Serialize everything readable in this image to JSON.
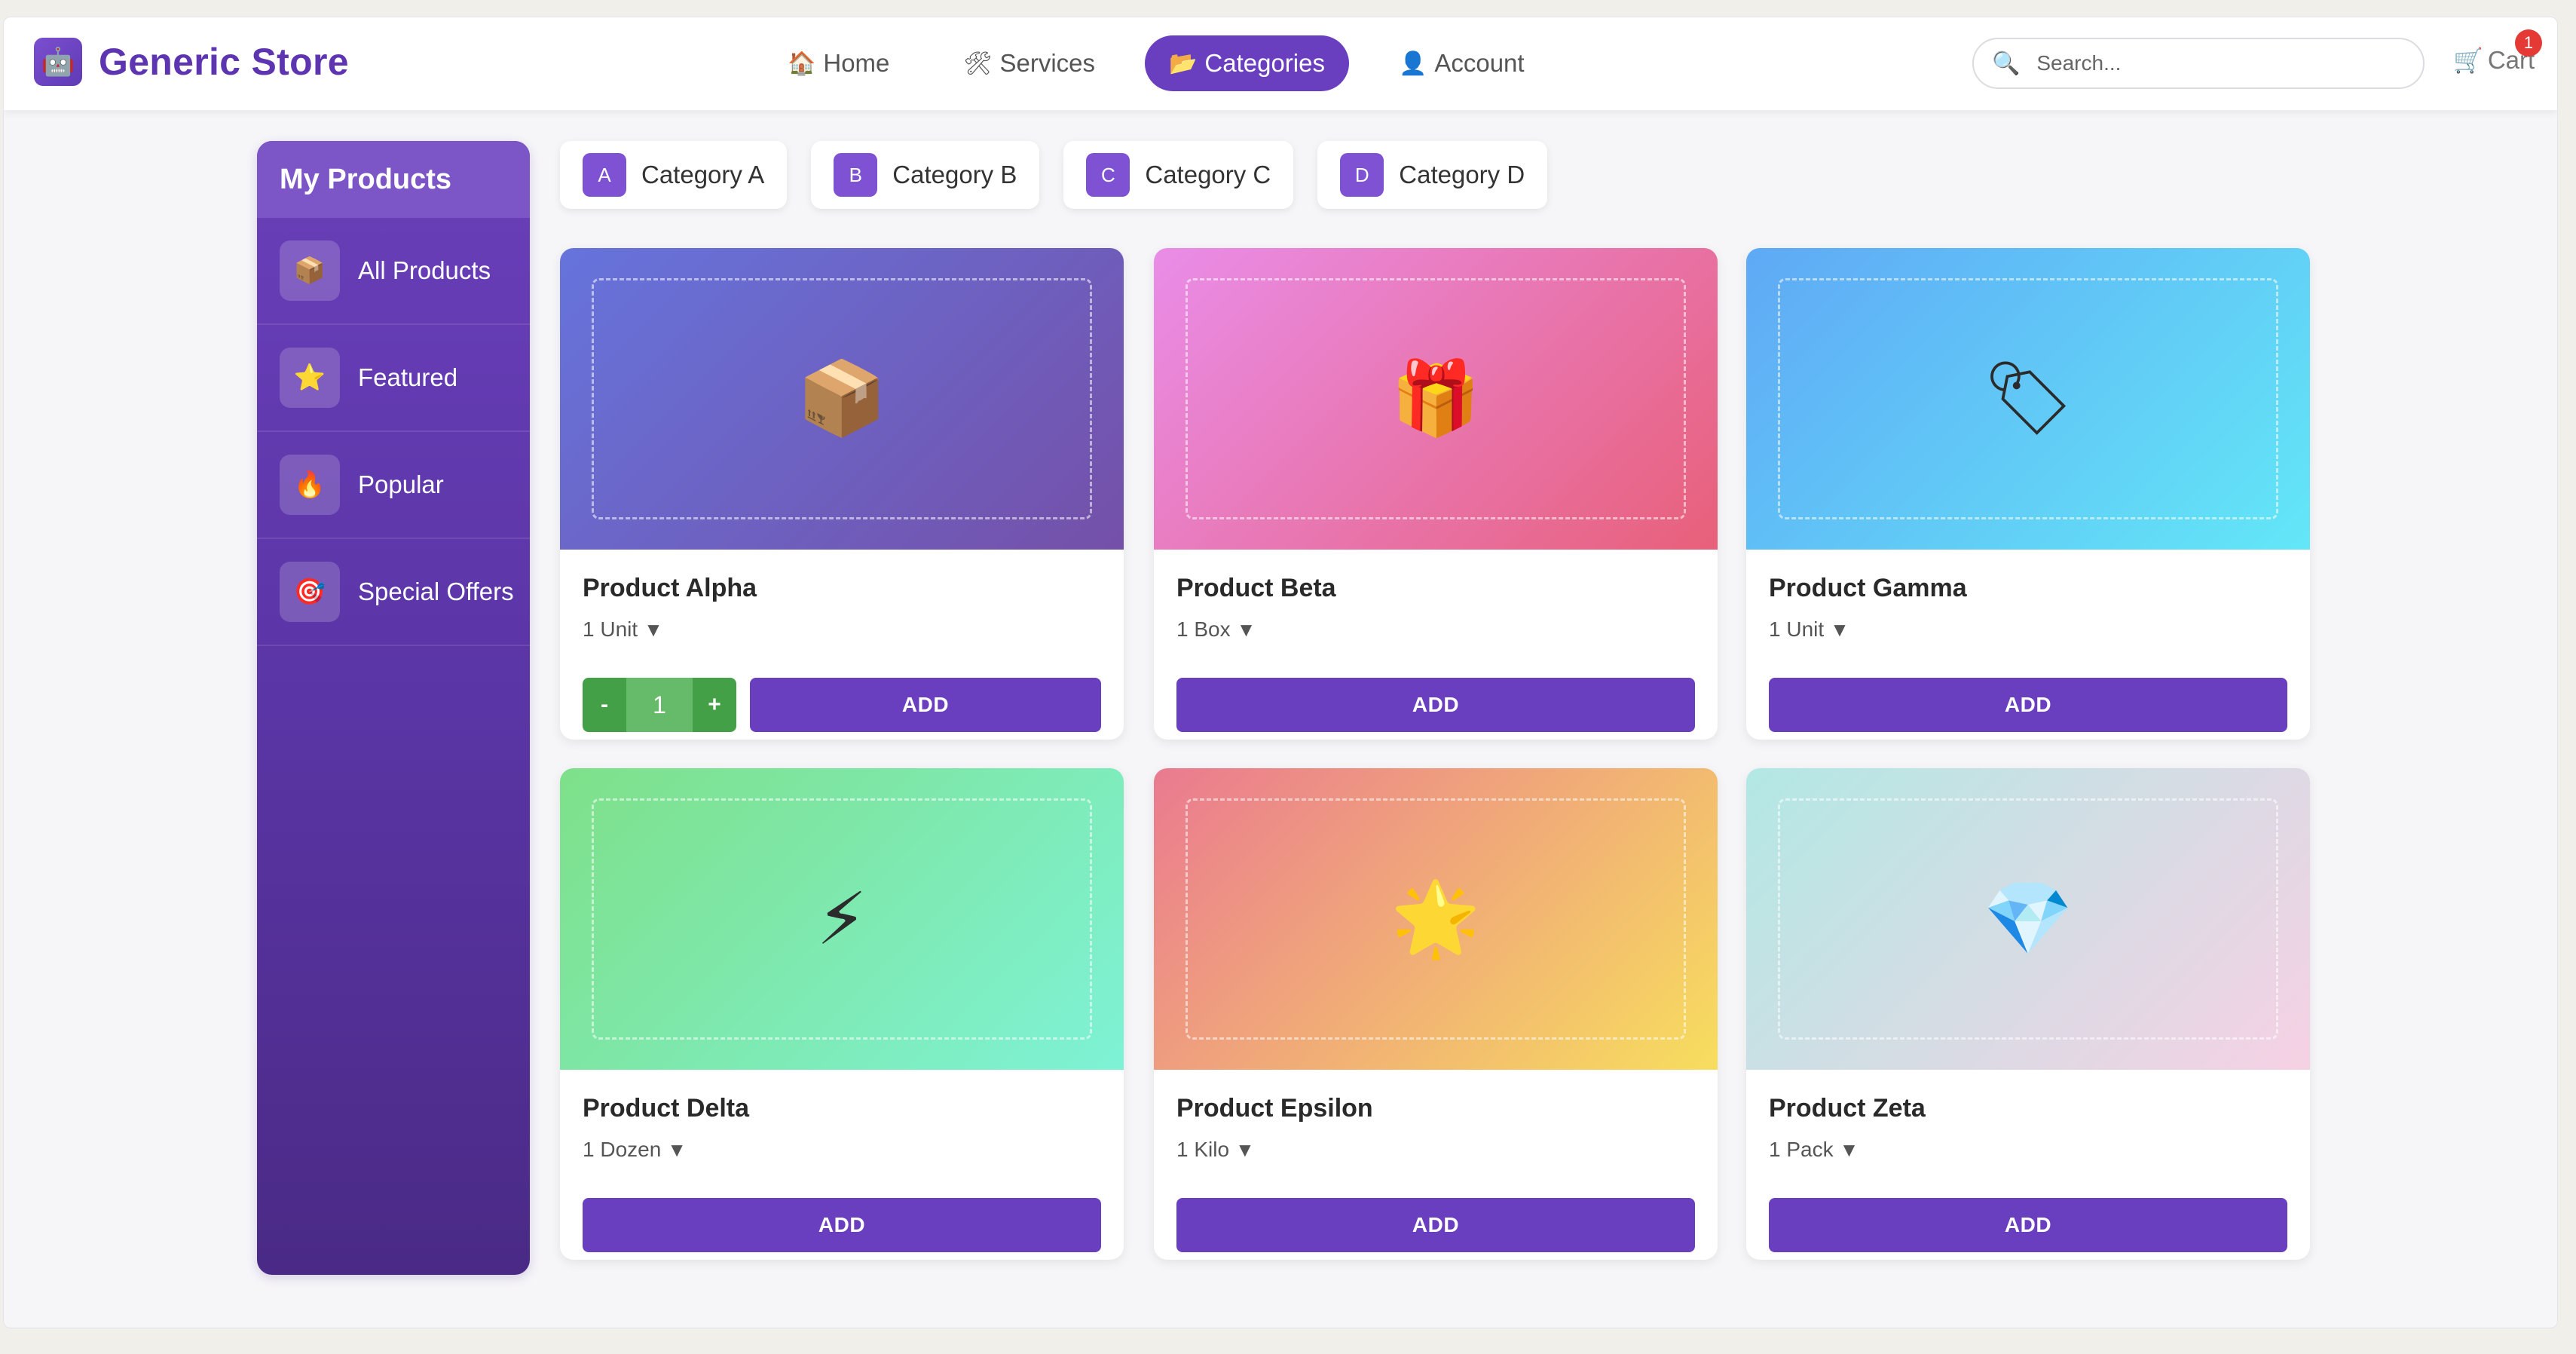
{
  "brand": {
    "logo_icon": "robot-icon",
    "logo_glyph": "🤖",
    "name": "Generic Store",
    "color": "#5e35b1"
  },
  "nav": [
    {
      "icon": "home-icon",
      "glyph": "🏠",
      "label": "Home",
      "active": false
    },
    {
      "icon": "tools-icon",
      "glyph": "🛠",
      "label": "Services",
      "active": false
    },
    {
      "icon": "folder-icon",
      "glyph": "📂",
      "label": "Categories",
      "active": true
    },
    {
      "icon": "user-icon",
      "glyph": "👤",
      "label": "Account",
      "active": false
    }
  ],
  "search": {
    "icon": "search-icon",
    "glyph": "🔍",
    "placeholder": "Search...",
    "value": ""
  },
  "cart": {
    "icon": "cart-icon",
    "glyph": "🛒",
    "label": "Cart",
    "count": "1"
  },
  "sidebar": {
    "title": "My Products",
    "items": [
      {
        "icon": "box-icon",
        "glyph": "📦",
        "label": "All Products"
      },
      {
        "icon": "star-icon",
        "glyph": "⭐",
        "label": "Featured"
      },
      {
        "icon": "fire-icon",
        "glyph": "🔥",
        "label": "Popular"
      },
      {
        "icon": "target-icon",
        "glyph": "🎯",
        "label": "Special Offers"
      }
    ]
  },
  "categories": [
    {
      "badge": "A",
      "label": "Category A"
    },
    {
      "badge": "B",
      "label": "Category B"
    },
    {
      "badge": "C",
      "label": "Category C"
    },
    {
      "badge": "D",
      "label": "Category D"
    }
  ],
  "products": [
    {
      "name": "Product Alpha",
      "unit": "1 Unit",
      "icon": "box-icon",
      "glyph": "📦",
      "gradient": [
        "#6674dc",
        "#7450a8"
      ],
      "quantity": "1",
      "in_cart": true,
      "add_label": "ADD"
    },
    {
      "name": "Product Beta",
      "unit": "1 Box",
      "icon": "gift-icon",
      "glyph": "🎁",
      "gradient": [
        "#e98de8",
        "#e8607a"
      ],
      "in_cart": false,
      "add_label": "ADD"
    },
    {
      "name": "Product Gamma",
      "unit": "1 Unit",
      "icon": "tag-icon",
      "glyph": "🏷",
      "gradient": [
        "#5fa9f5",
        "#63e7f7"
      ],
      "in_cart": false,
      "add_label": "ADD"
    },
    {
      "name": "Product Delta",
      "unit": "1 Dozen",
      "icon": "lightning-icon",
      "glyph": "⚡",
      "gradient": [
        "#7ee089",
        "#7ef2d6"
      ],
      "in_cart": false,
      "add_label": "ADD"
    },
    {
      "name": "Product Epsilon",
      "unit": "1 Kilo",
      "icon": "star-icon",
      "glyph": "🌟",
      "gradient": [
        "#ea7a90",
        "#f7de5e"
      ],
      "in_cart": false,
      "add_label": "ADD"
    },
    {
      "name": "Product Zeta",
      "unit": "1 Pack",
      "icon": "gem-icon",
      "glyph": "💎",
      "gradient": [
        "#b2e8e4",
        "#f6d1e4"
      ],
      "in_cart": false,
      "add_label": "ADD"
    }
  ],
  "stepper": {
    "minus": "-",
    "plus": "+"
  },
  "unit_caret": "▼",
  "accent": "#6a3fbf"
}
